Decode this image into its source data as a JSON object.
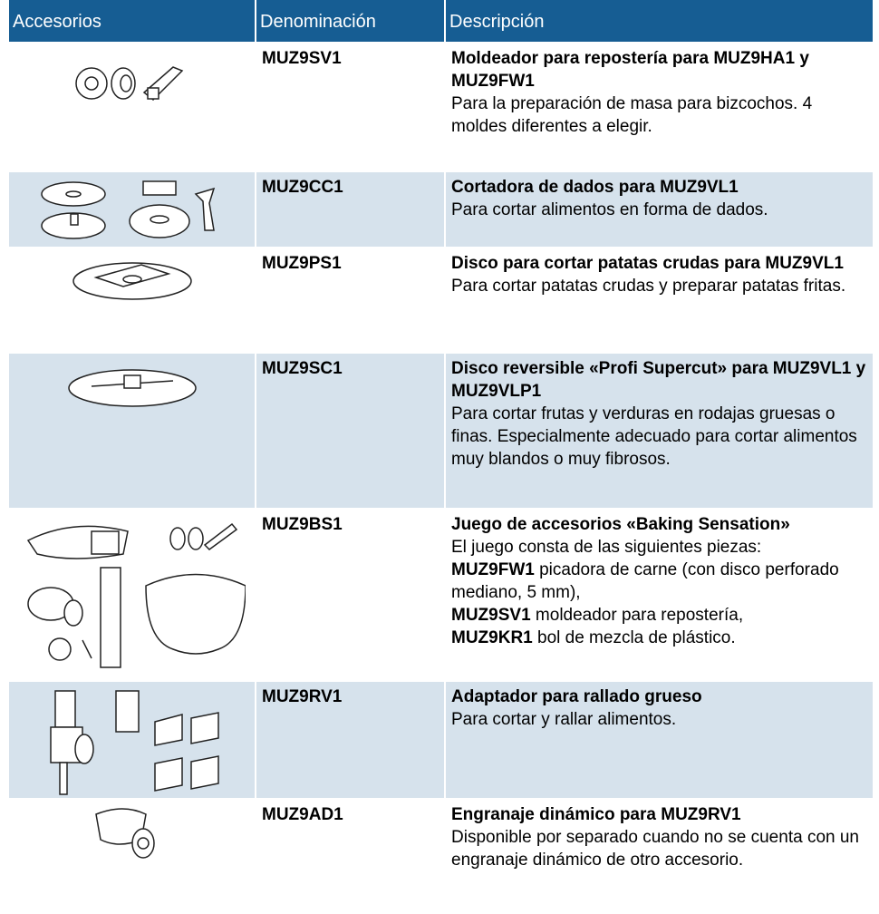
{
  "header": {
    "col1": "Accesorios",
    "col2": "Denominación",
    "col3": "Descripción"
  },
  "rows": [
    {
      "code": "MUZ9SV1",
      "title": "Moldeador para repostería para MUZ9HA1 y MUZ9FW1",
      "text": "Para la preparación de masa para bizcochos. 4 moldes diferentes a elegir."
    },
    {
      "code": "MUZ9CC1",
      "title": "Cortadora de dados para MUZ9VL1",
      "text": "Para cortar alimentos en forma de dados."
    },
    {
      "code": "MUZ9PS1",
      "title": "Disco para cortar patatas crudas para MUZ9VL1",
      "text": "Para cortar patatas crudas y preparar patatas fritas."
    },
    {
      "code": "MUZ9SC1",
      "title": "Disco reversible «Profi Supercut» para MUZ9VL1 y MUZ9VLP1",
      "text": "Para cortar frutas y verduras en rodajas gruesas o finas. Especialmente adecuado para cortar alimentos muy blandos o muy fibrosos."
    },
    {
      "code": "MUZ9BS1",
      "title": "Juego de accesorios «Baking Sensation»",
      "text": "El juego consta de las siguientes piezas:",
      "items": [
        {
          "code": "MUZ9FW1",
          "text": "picadora de carne (con disco perforado mediano, 5 mm),"
        },
        {
          "code": "MUZ9SV1",
          "text": "moldeador para repostería,"
        },
        {
          "code": "MUZ9KR1",
          "text": "bol de mezcla de plástico."
        }
      ]
    },
    {
      "code": "MUZ9RV1",
      "title": "Adaptador para rallado grueso",
      "text": "Para cortar y rallar alimentos."
    },
    {
      "code": "MUZ9AD1",
      "title": "Engranaje dinámico para MUZ9RV1",
      "text": "Disponible por separado cuando no se cuenta con un engranaje dinámico de otro accesorio."
    }
  ]
}
